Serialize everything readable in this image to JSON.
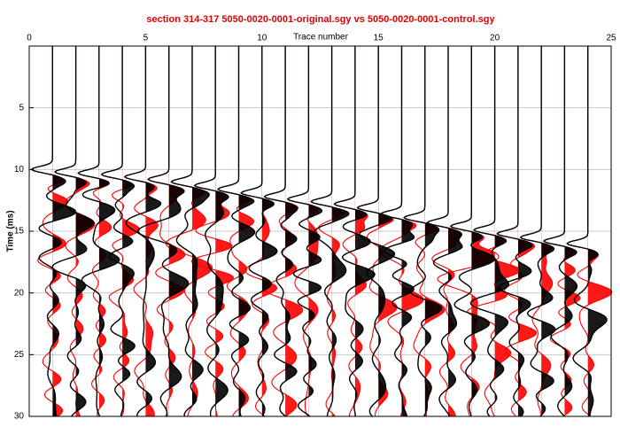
{
  "chart_data": {
    "type": "wiggle",
    "title": "section 314-317  5050-0020-0001-original.sgy vs 5050-0020-0001-control.sgy",
    "x_label": "Trace number",
    "y_label": "Time (ms)",
    "x": [
      1,
      2,
      3,
      4,
      5,
      6,
      7,
      8,
      9,
      10,
      11,
      12,
      13,
      14,
      15,
      16,
      17,
      18,
      19,
      20,
      21,
      22,
      23,
      24
    ],
    "series": [
      {
        "name": "original",
        "color": "#ff0000",
        "values": [
          10.0,
          10.2,
          10.3,
          10.4,
          10.6,
          10.8,
          11.0,
          11.3,
          11.6,
          11.9,
          12.2,
          12.4,
          12.6,
          12.8,
          13.1,
          13.6,
          13.9,
          14.3,
          14.6,
          14.9,
          15.2,
          15.5,
          15.8,
          16.0
        ]
      },
      {
        "name": "control",
        "color": "#000000",
        "values": [
          10.0,
          10.2,
          10.3,
          10.4,
          10.6,
          10.8,
          11.0,
          11.3,
          11.6,
          11.9,
          12.2,
          12.4,
          12.6,
          12.8,
          13.1,
          13.6,
          13.9,
          14.3,
          14.6,
          14.9,
          15.2,
          15.5,
          15.8,
          16.0
        ]
      }
    ],
    "xlim": [
      0,
      25
    ],
    "xticks": [
      0,
      5,
      10,
      15,
      20,
      25
    ],
    "ylim": [
      0,
      30
    ],
    "yticks": [
      5,
      10,
      15,
      20,
      25,
      30
    ],
    "y_inverted": true,
    "grid": true
  }
}
